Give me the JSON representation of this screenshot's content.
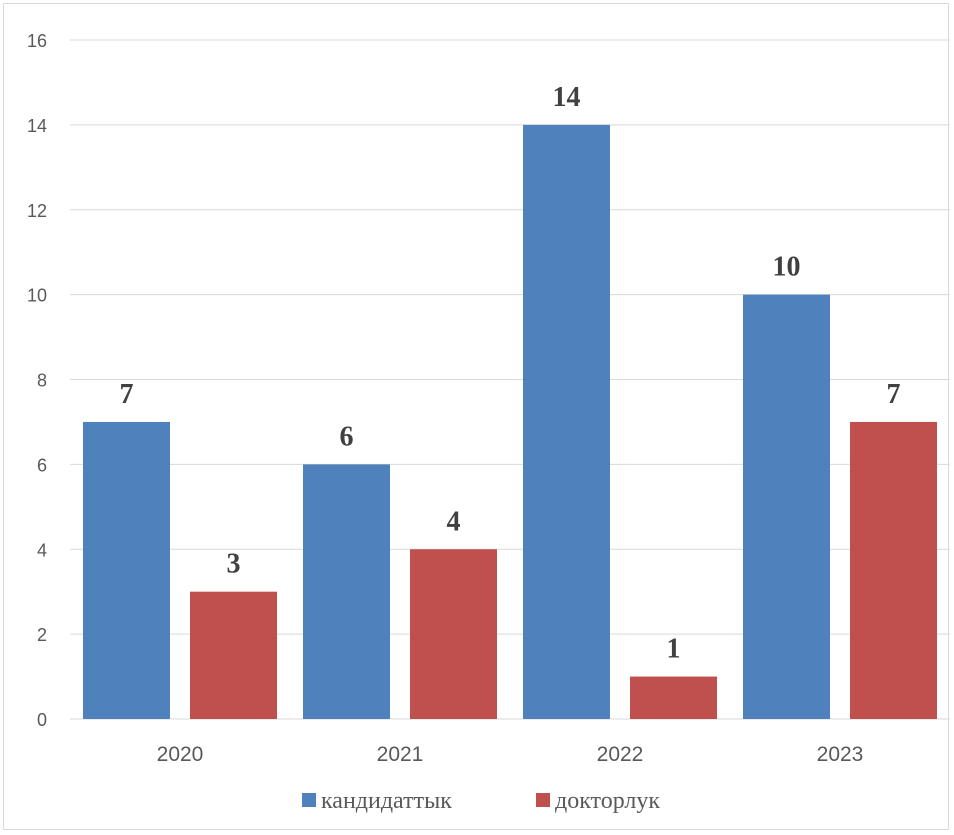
{
  "chart_data": {
    "type": "bar",
    "categories": [
      "2020",
      "2021",
      "2022",
      "2023"
    ],
    "series": [
      {
        "name": "кандидаттык",
        "values": [
          7,
          6,
          14,
          10
        ],
        "color": "#4f81bd"
      },
      {
        "name": "докторлук",
        "values": [
          3,
          4,
          1,
          7
        ],
        "color": "#c0504d"
      }
    ],
    "ylim": [
      0,
      16
    ],
    "yticks": [
      "0",
      "2",
      "4",
      "6",
      "8",
      "10",
      "12",
      "14",
      "16"
    ],
    "grid": true,
    "legend": "bottom",
    "data_labels": true
  }
}
